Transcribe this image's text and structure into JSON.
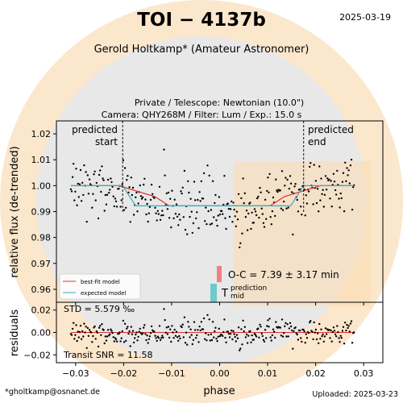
{
  "header": {
    "title": "TOI − 4137b",
    "date": "2025-03-19",
    "observer": "Gerold Holtkamp* (Amateur Astronomer)",
    "line1": "Private / Telescope: Newtonian (10.0\")",
    "line2": "Camera: QHY268M / Filter: Lum / Exp.: 15.0 s"
  },
  "footer": {
    "email": "*gholtkamp@osnanet.de",
    "uploaded": "Uploaded: 2025-03-23"
  },
  "colors": {
    "best_fit": "#e03030",
    "expected": "#30b0c0",
    "oc_bar": "#f08080",
    "tmid_bar": "#70c8c8",
    "watermark_ring": "#fbe7cc",
    "watermark_disk": "#e8e8e8",
    "watermark_orange": "#fbdcb4"
  },
  "chart_data": [
    {
      "type": "scatter",
      "panel": "main",
      "xlabel": "",
      "ylabel": "relative flux (de-trended)",
      "xlim": [
        -0.034,
        0.034
      ],
      "ylim": [
        0.955,
        1.025
      ],
      "yticks": [
        "0.96",
        "0.97",
        "0.98",
        "0.99",
        "1.00",
        "1.01",
        "1.02"
      ],
      "ytick_values": [
        0.96,
        0.97,
        0.98,
        0.99,
        1.0,
        1.01,
        1.02
      ],
      "grid": false,
      "legend_position": "bottom-left",
      "predicted_start": -0.0202,
      "predicted_end": 0.0175,
      "predicted_start_label": "predicted start",
      "predicted_end_label": "predicted end",
      "x_range_points": [
        -0.031,
        0.028
      ],
      "transit_depth": 0.0078,
      "ingress": -0.0135,
      "egress": 0.0135,
      "scatter_std": 0.0055,
      "n_points": 320,
      "series": [
        {
          "name": "best-fit model",
          "kind": "line",
          "color": "#e03030",
          "x": [
            -0.031,
            -0.021,
            -0.0135,
            -0.0105,
            0.0105,
            0.0135,
            0.021,
            0.028
          ],
          "y": [
            1.0,
            1.0,
            0.9958,
            0.9922,
            0.9922,
            0.9958,
            1.0,
            1.0
          ]
        },
        {
          "name": "expected model",
          "kind": "line",
          "color": "#30b0c0",
          "x": [
            -0.031,
            -0.0202,
            -0.0175,
            0.0148,
            0.0175,
            0.028
          ],
          "y": [
            1.0,
            1.0,
            0.9922,
            0.9922,
            1.0,
            1.0
          ]
        }
      ],
      "annotations": {
        "oc_text": "O-C = 7.39 ± 3.17 min",
        "tmid_text": "T",
        "tmid_sup": "prediction",
        "tmid_sub": "mid"
      }
    },
    {
      "type": "scatter",
      "panel": "residuals",
      "xlabel": "phase",
      "ylabel": "residuals",
      "xlim": [
        -0.034,
        0.034
      ],
      "ylim": [
        -0.027,
        0.027
      ],
      "xticks": [
        "−0.03",
        "−0.02",
        "−0.01",
        "0.00",
        "0.01",
        "0.02",
        "0.03"
      ],
      "xtick_values": [
        -0.03,
        -0.02,
        -0.01,
        0.0,
        0.01,
        0.02,
        0.03
      ],
      "yticks": [
        "−0.02",
        "0.00",
        "0.02"
      ],
      "ytick_values": [
        -0.02,
        0.0,
        0.02
      ],
      "std_text": "STD = 5.579 ‰",
      "snr_text": "Transit SNR = 11.58"
    }
  ]
}
